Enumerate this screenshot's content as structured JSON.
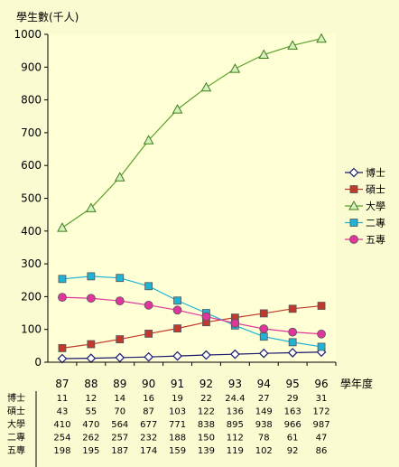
{
  "chart_data": {
    "type": "line",
    "ylabel": "學生數(千人)",
    "xlabel": "學年度",
    "ylim": [
      0,
      1000
    ],
    "yticks": [
      "0",
      "100",
      "200",
      "300",
      "400",
      "500",
      "600",
      "700",
      "800",
      "900",
      "1000"
    ],
    "categories": [
      "87",
      "88",
      "89",
      "90",
      "91",
      "92",
      "93",
      "94",
      "95",
      "96"
    ],
    "grid": false,
    "legend_position": "right",
    "series": [
      {
        "name": "博士",
        "color": "#1a1a6e",
        "marker": "diamond",
        "values": [
          11,
          12,
          14,
          16,
          19,
          22,
          24.4,
          27,
          29,
          31
        ],
        "labels": [
          "11",
          "12",
          "14",
          "16",
          "19",
          "22",
          "24.4",
          "27",
          "29",
          "31"
        ]
      },
      {
        "name": "碩士",
        "color": "#c0392b",
        "marker": "square",
        "values": [
          43,
          55,
          70,
          87,
          103,
          122,
          136,
          149,
          163,
          172
        ],
        "labels": [
          "43",
          "55",
          "70",
          "87",
          "103",
          "122",
          "136",
          "149",
          "163",
          "172"
        ]
      },
      {
        "name": "大學",
        "color": "#5aa02c",
        "marker": "triangle",
        "values": [
          410,
          470,
          564,
          677,
          771,
          838,
          895,
          938,
          966,
          987
        ],
        "labels": [
          "410",
          "470",
          "564",
          "677",
          "771",
          "838",
          "895",
          "938",
          "966",
          "987"
        ]
      },
      {
        "name": "二專",
        "color": "#1fb3d6",
        "marker": "square",
        "values": [
          254,
          262,
          257,
          232,
          188,
          150,
          112,
          78,
          61,
          47
        ],
        "labels": [
          "254",
          "262",
          "257",
          "232",
          "188",
          "150",
          "112",
          "78",
          "61",
          "47"
        ]
      },
      {
        "name": "五專",
        "color": "#e0359a",
        "marker": "circle",
        "values": [
          198,
          195,
          187,
          174,
          159,
          139,
          119,
          102,
          92,
          86
        ],
        "labels": [
          "198",
          "195",
          "187",
          "174",
          "159",
          "139",
          "119",
          "102",
          "92",
          "86"
        ]
      }
    ]
  }
}
